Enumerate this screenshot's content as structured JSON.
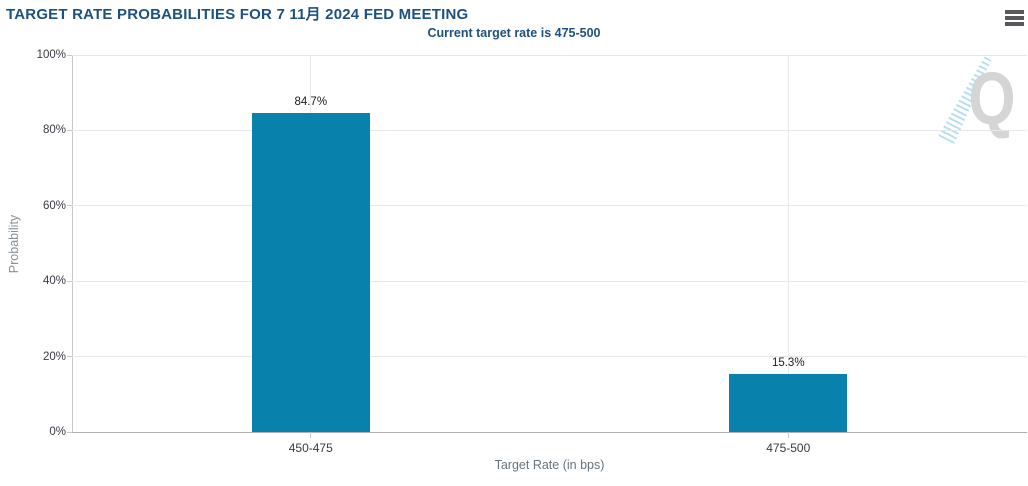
{
  "header": {
    "title": "TARGET RATE PROBABILITIES FOR 7 11月 2024 FED MEETING",
    "subtitle": "Current target rate is 475-500"
  },
  "menu": {
    "icon": "hamburger-menu-icon"
  },
  "watermark": {
    "letter": "Q"
  },
  "colors": {
    "title_blue": "#1d517f",
    "bar_blue": "#0981ad",
    "gridline": "#e7e7e7",
    "axis_line": "#c9c9c9",
    "baseline": "#b0b0b0"
  },
  "chart_data": {
    "type": "bar",
    "title": "TARGET RATE PROBABILITIES FOR 7 11月 2024 FED MEETING",
    "subtitle": "Current target rate is 475-500",
    "categories": [
      "450-475",
      "475-500"
    ],
    "values": [
      84.7,
      15.3
    ],
    "value_labels": [
      "84.7%",
      "15.3%"
    ],
    "xlabel": "Target Rate (in bps)",
    "ylabel": "Probability",
    "ylim": [
      0,
      100
    ],
    "ytick_step": 20,
    "yticks": [
      "0%",
      "20%",
      "40%",
      "60%",
      "80%",
      "100%"
    ],
    "grid": true,
    "legend": "none",
    "bar_color": "#0981ad"
  }
}
